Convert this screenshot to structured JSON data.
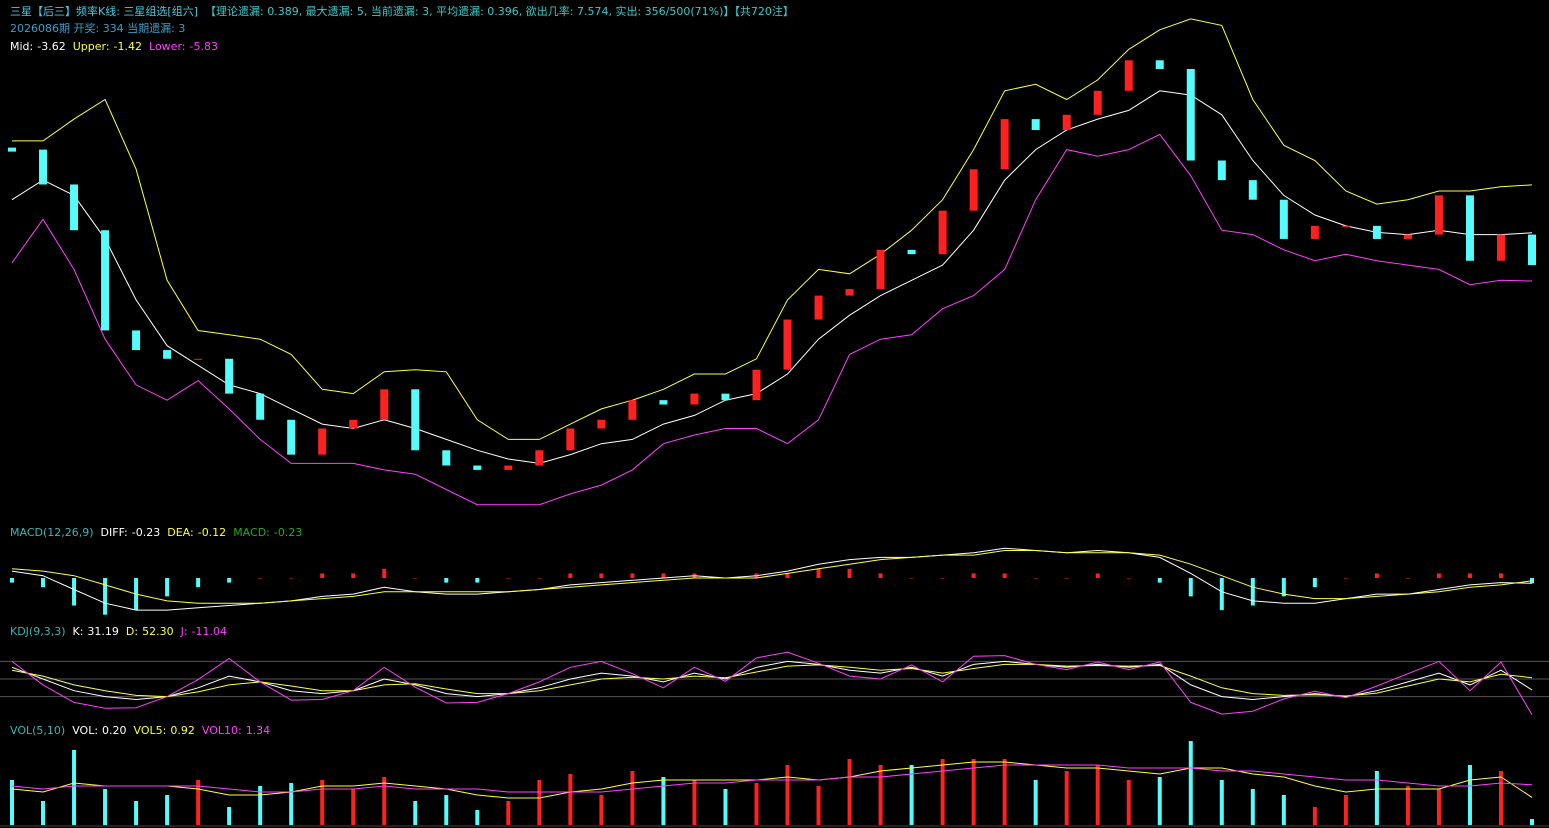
{
  "chart_data": [
    {
      "type": "candlestick",
      "title": "三星【后三】频率K线: 三星组选[组六]",
      "subtitle": "【理论遗漏: 0.389, 最大遗漏: 5, 当前遗漏: 3, 平均遗漏: 0.396, 欲出几率: 7.574, 实出: 356/500(71%)】【共720注】",
      "info": "2026086期 开奖: 334 当期遗漏: 3",
      "up_color": "#ff2020",
      "down_color": "#54fcfc",
      "ylim": [
        -16.8,
        6.7
      ],
      "values": [
        0.2,
        -1.4,
        -3.5,
        -8.1,
        -9.0,
        -9.4,
        -9.4,
        -11.0,
        -12.2,
        -13.8,
        -12.6,
        -12.2,
        -10.8,
        -13.6,
        -14.3,
        -14.5,
        -14.3,
        -13.6,
        -12.6,
        -12.2,
        -11.3,
        -11.5,
        -11.0,
        -11.3,
        -9.9,
        -7.6,
        -6.5,
        -6.2,
        -4.4,
        -4.6,
        -2.6,
        -0.7,
        1.6,
        1.1,
        1.8,
        2.9,
        4.3,
        3.9,
        -0.3,
        -1.2,
        -2.1,
        -3.9,
        -3.3,
        -3.3,
        -3.9,
        -3.7,
        -1.9,
        -4.9,
        -3.7,
        -5.1
      ],
      "series": [
        {
          "name": "Mid:",
          "readout": "-3.62",
          "color": "#ffffff",
          "values": [
            -2.1,
            -1.2,
            -1.9,
            -3.9,
            -6.7,
            -8.8,
            -9.7,
            -10.6,
            -11.0,
            -11.7,
            -12.4,
            -12.6,
            -12.2,
            -12.6,
            -13.1,
            -13.6,
            -14.0,
            -14.2,
            -13.8,
            -13.3,
            -13.1,
            -12.4,
            -12.0,
            -11.3,
            -11.0,
            -10.1,
            -8.5,
            -7.4,
            -6.5,
            -5.8,
            -5.1,
            -3.5,
            -1.2,
            0.2,
            1.1,
            1.6,
            2.0,
            2.9,
            2.7,
            1.8,
            -0.3,
            -1.9,
            -2.8,
            -3.3,
            -3.6,
            -3.7,
            -3.5,
            -3.7,
            -3.7,
            -3.62
          ]
        },
        {
          "name": "Upper:",
          "readout": "-1.42",
          "color": "#ffff40",
          "values": [
            0.6,
            0.6,
            1.6,
            2.5,
            -0.7,
            -5.8,
            -8.1,
            -8.3,
            -8.5,
            -9.2,
            -10.8,
            -11.0,
            -10.0,
            -9.9,
            -10.0,
            -12.2,
            -13.1,
            -13.1,
            -12.4,
            -11.7,
            -11.3,
            -10.8,
            -10.1,
            -10.1,
            -9.4,
            -6.7,
            -5.3,
            -5.5,
            -4.6,
            -3.5,
            -2.1,
            0.2,
            2.9,
            3.2,
            2.5,
            3.4,
            4.8,
            5.7,
            6.2,
            5.9,
            2.5,
            0.4,
            -0.3,
            -1.7,
            -2.3,
            -2.1,
            -1.7,
            -1.7,
            -1.5,
            -1.42
          ]
        },
        {
          "name": "Lower:",
          "readout": "-5.83",
          "color": "#ff40ff",
          "values": [
            -5.0,
            -3.0,
            -5.3,
            -8.5,
            -10.6,
            -11.3,
            -10.4,
            -11.7,
            -13.1,
            -14.2,
            -14.2,
            -14.2,
            -14.5,
            -14.7,
            -15.4,
            -16.1,
            -16.1,
            -16.1,
            -15.6,
            -15.2,
            -14.5,
            -13.3,
            -12.9,
            -12.6,
            -12.6,
            -13.3,
            -12.2,
            -9.2,
            -8.5,
            -8.3,
            -7.1,
            -6.5,
            -5.3,
            -2.1,
            0.2,
            -0.1,
            0.2,
            0.9,
            -1.0,
            -3.5,
            -3.7,
            -4.4,
            -4.9,
            -4.6,
            -4.9,
            -5.1,
            -5.3,
            -6.0,
            -5.8,
            -5.83
          ]
        }
      ]
    },
    {
      "type": "macd",
      "title": "MACD(12,26,9)",
      "ylim": [
        -1.7,
        1.7
      ],
      "series": [
        {
          "name": "DIFF:",
          "readout": "-0.23",
          "color": "#ffffff",
          "values": [
            0.3,
            0.1,
            -0.5,
            -1.1,
            -1.4,
            -1.4,
            -1.3,
            -1.2,
            -1.1,
            -1.0,
            -0.8,
            -0.7,
            -0.4,
            -0.6,
            -0.7,
            -0.7,
            -0.6,
            -0.5,
            -0.3,
            -0.2,
            -0.1,
            0.0,
            0.1,
            0.0,
            0.1,
            0.3,
            0.6,
            0.8,
            0.9,
            0.9,
            1.0,
            1.1,
            1.3,
            1.2,
            1.1,
            1.2,
            1.1,
            0.9,
            0.2,
            -0.6,
            -1.0,
            -1.1,
            -1.1,
            -0.9,
            -0.7,
            -0.7,
            -0.5,
            -0.3,
            -0.2,
            -0.23
          ]
        },
        {
          "name": "DEA:",
          "readout": "-0.12",
          "color": "#ffff40",
          "values": [
            0.4,
            0.3,
            0.1,
            -0.3,
            -0.7,
            -1.0,
            -1.1,
            -1.1,
            -1.1,
            -1.0,
            -0.9,
            -0.8,
            -0.6,
            -0.6,
            -0.6,
            -0.6,
            -0.6,
            -0.5,
            -0.4,
            -0.3,
            -0.2,
            -0.1,
            0.0,
            0.0,
            0.0,
            0.2,
            0.4,
            0.6,
            0.8,
            0.9,
            1.0,
            1.0,
            1.2,
            1.2,
            1.1,
            1.1,
            1.1,
            1.0,
            0.6,
            0.1,
            -0.4,
            -0.7,
            -0.9,
            -0.9,
            -0.8,
            -0.7,
            -0.6,
            -0.4,
            -0.3,
            -0.12
          ]
        },
        {
          "name": "MACD:",
          "readout": "-0.23",
          "color": "#22aa22",
          "style": "bar",
          "up_color": "#ff2020",
          "down_color": "#54fcfc",
          "values": [
            -0.2,
            -0.4,
            -1.2,
            -1.6,
            -1.4,
            -0.8,
            -0.4,
            -0.2,
            0.0,
            0.0,
            0.2,
            0.2,
            0.4,
            0.0,
            -0.2,
            -0.2,
            0.0,
            0.0,
            0.2,
            0.2,
            0.2,
            0.2,
            0.2,
            0.0,
            0.2,
            0.2,
            0.4,
            0.4,
            0.2,
            0.0,
            0.0,
            0.2,
            0.2,
            0.0,
            0.0,
            0.2,
            0.0,
            -0.2,
            -0.8,
            -1.4,
            -1.2,
            -0.8,
            -0.4,
            0.0,
            0.2,
            0.0,
            0.2,
            0.2,
            0.2,
            -0.23
          ]
        }
      ]
    },
    {
      "type": "line",
      "title": "KDJ(9,3,3)",
      "ylim": [
        -20,
        120
      ],
      "ref_lines": [
        20,
        50,
        80
      ],
      "series": [
        {
          "name": "K:",
          "readout": "31.19",
          "color": "#ffffff",
          "values": [
            70,
            50,
            30,
            20,
            15,
            20,
            35,
            55,
            45,
            30,
            25,
            30,
            50,
            40,
            25,
            20,
            25,
            35,
            50,
            60,
            55,
            45,
            60,
            50,
            70,
            80,
            75,
            65,
            60,
            70,
            55,
            75,
            80,
            75,
            70,
            75,
            70,
            75,
            40,
            20,
            15,
            20,
            25,
            20,
            30,
            45,
            60,
            40,
            65,
            31.19
          ]
        },
        {
          "name": "D:",
          "readout": "52.30",
          "color": "#ffff40",
          "values": [
            65,
            55,
            40,
            30,
            22,
            20,
            28,
            40,
            45,
            38,
            30,
            30,
            40,
            42,
            33,
            25,
            25,
            30,
            40,
            50,
            53,
            50,
            55,
            52,
            62,
            72,
            74,
            70,
            65,
            68,
            60,
            68,
            75,
            75,
            72,
            73,
            72,
            73,
            55,
            35,
            25,
            22,
            23,
            21,
            26,
            38,
            50,
            45,
            58,
            52.3
          ]
        },
        {
          "name": "J:",
          "readout": "-11.04",
          "color": "#ff40ff",
          "values": [
            80,
            40,
            10,
            0,
            1,
            20,
            49,
            85,
            45,
            14,
            15,
            30,
            70,
            36,
            9,
            10,
            25,
            45,
            70,
            80,
            59,
            35,
            70,
            46,
            86,
            96,
            77,
            55,
            50,
            74,
            45,
            89,
            90,
            75,
            66,
            79,
            66,
            79,
            10,
            -10,
            -5,
            16,
            29,
            18,
            38,
            59,
            80,
            30,
            79,
            -11.04
          ]
        }
      ]
    },
    {
      "type": "volume",
      "title": "VOL(5,10)",
      "ylim": [
        0,
        3
      ],
      "series": [
        {
          "name": "VOL:",
          "readout": "0.20",
          "color": "#ffffff",
          "style": "bar",
          "up_color": "#ff2020",
          "down_color": "#54fcfc",
          "values": [
            1.5,
            0.8,
            2.5,
            1.2,
            0.8,
            1.0,
            1.5,
            0.6,
            1.3,
            1.4,
            1.5,
            1.2,
            1.6,
            0.8,
            1.0,
            0.5,
            0.8,
            1.5,
            1.7,
            1.0,
            1.8,
            1.6,
            1.5,
            1.2,
            1.4,
            2.0,
            1.3,
            2.2,
            2.0,
            2.0,
            2.2,
            2.2,
            2.2,
            1.5,
            1.8,
            2.0,
            1.5,
            1.6,
            2.8,
            1.5,
            1.2,
            1.0,
            0.6,
            1.0,
            1.8,
            1.3,
            1.2,
            2.0,
            1.8,
            0.2
          ]
        },
        {
          "name": "VOL5:",
          "readout": "0.92",
          "color": "#ffff40",
          "values": [
            1.2,
            1.1,
            1.4,
            1.3,
            1.3,
            1.3,
            1.2,
            1.0,
            1.0,
            1.1,
            1.3,
            1.3,
            1.4,
            1.3,
            1.2,
            1.0,
            0.9,
            0.9,
            1.1,
            1.2,
            1.4,
            1.5,
            1.5,
            1.5,
            1.5,
            1.6,
            1.5,
            1.6,
            1.8,
            1.9,
            2.0,
            2.1,
            2.1,
            2.0,
            1.9,
            1.9,
            1.8,
            1.7,
            1.9,
            1.9,
            1.7,
            1.6,
            1.3,
            1.1,
            1.2,
            1.2,
            1.2,
            1.5,
            1.6,
            0.92
          ]
        },
        {
          "name": "VOL10:",
          "readout": "1.34",
          "color": "#ff40ff",
          "values": [
            1.3,
            1.2,
            1.3,
            1.3,
            1.3,
            1.3,
            1.3,
            1.2,
            1.1,
            1.1,
            1.2,
            1.2,
            1.3,
            1.2,
            1.2,
            1.2,
            1.1,
            1.1,
            1.1,
            1.1,
            1.2,
            1.3,
            1.4,
            1.4,
            1.5,
            1.5,
            1.5,
            1.6,
            1.6,
            1.7,
            1.8,
            1.9,
            2.0,
            2.0,
            2.0,
            2.0,
            1.9,
            1.9,
            1.9,
            1.8,
            1.8,
            1.7,
            1.6,
            1.5,
            1.5,
            1.4,
            1.3,
            1.3,
            1.4,
            1.34
          ]
        }
      ]
    }
  ]
}
